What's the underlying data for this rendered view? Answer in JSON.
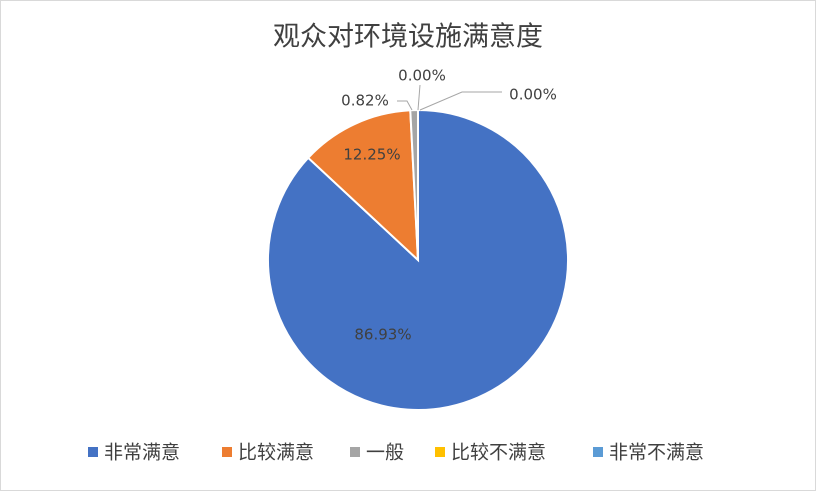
{
  "chart_data": {
    "type": "pie",
    "title": "观众对环境设施满意度",
    "categories": [
      "非常满意",
      "比较满意",
      "一般",
      "比较不满意",
      "非常不满意"
    ],
    "values": [
      86.93,
      12.25,
      0.82,
      0.0,
      0.0
    ],
    "value_labels": [
      "86.93%",
      "12.25%",
      "0.82%",
      "0.00%",
      "0.00%"
    ],
    "colors": [
      "#4472c4",
      "#ed7d31",
      "#a5a5a5",
      "#ffc000",
      "#5b9bd5"
    ],
    "legend": "bottom"
  }
}
